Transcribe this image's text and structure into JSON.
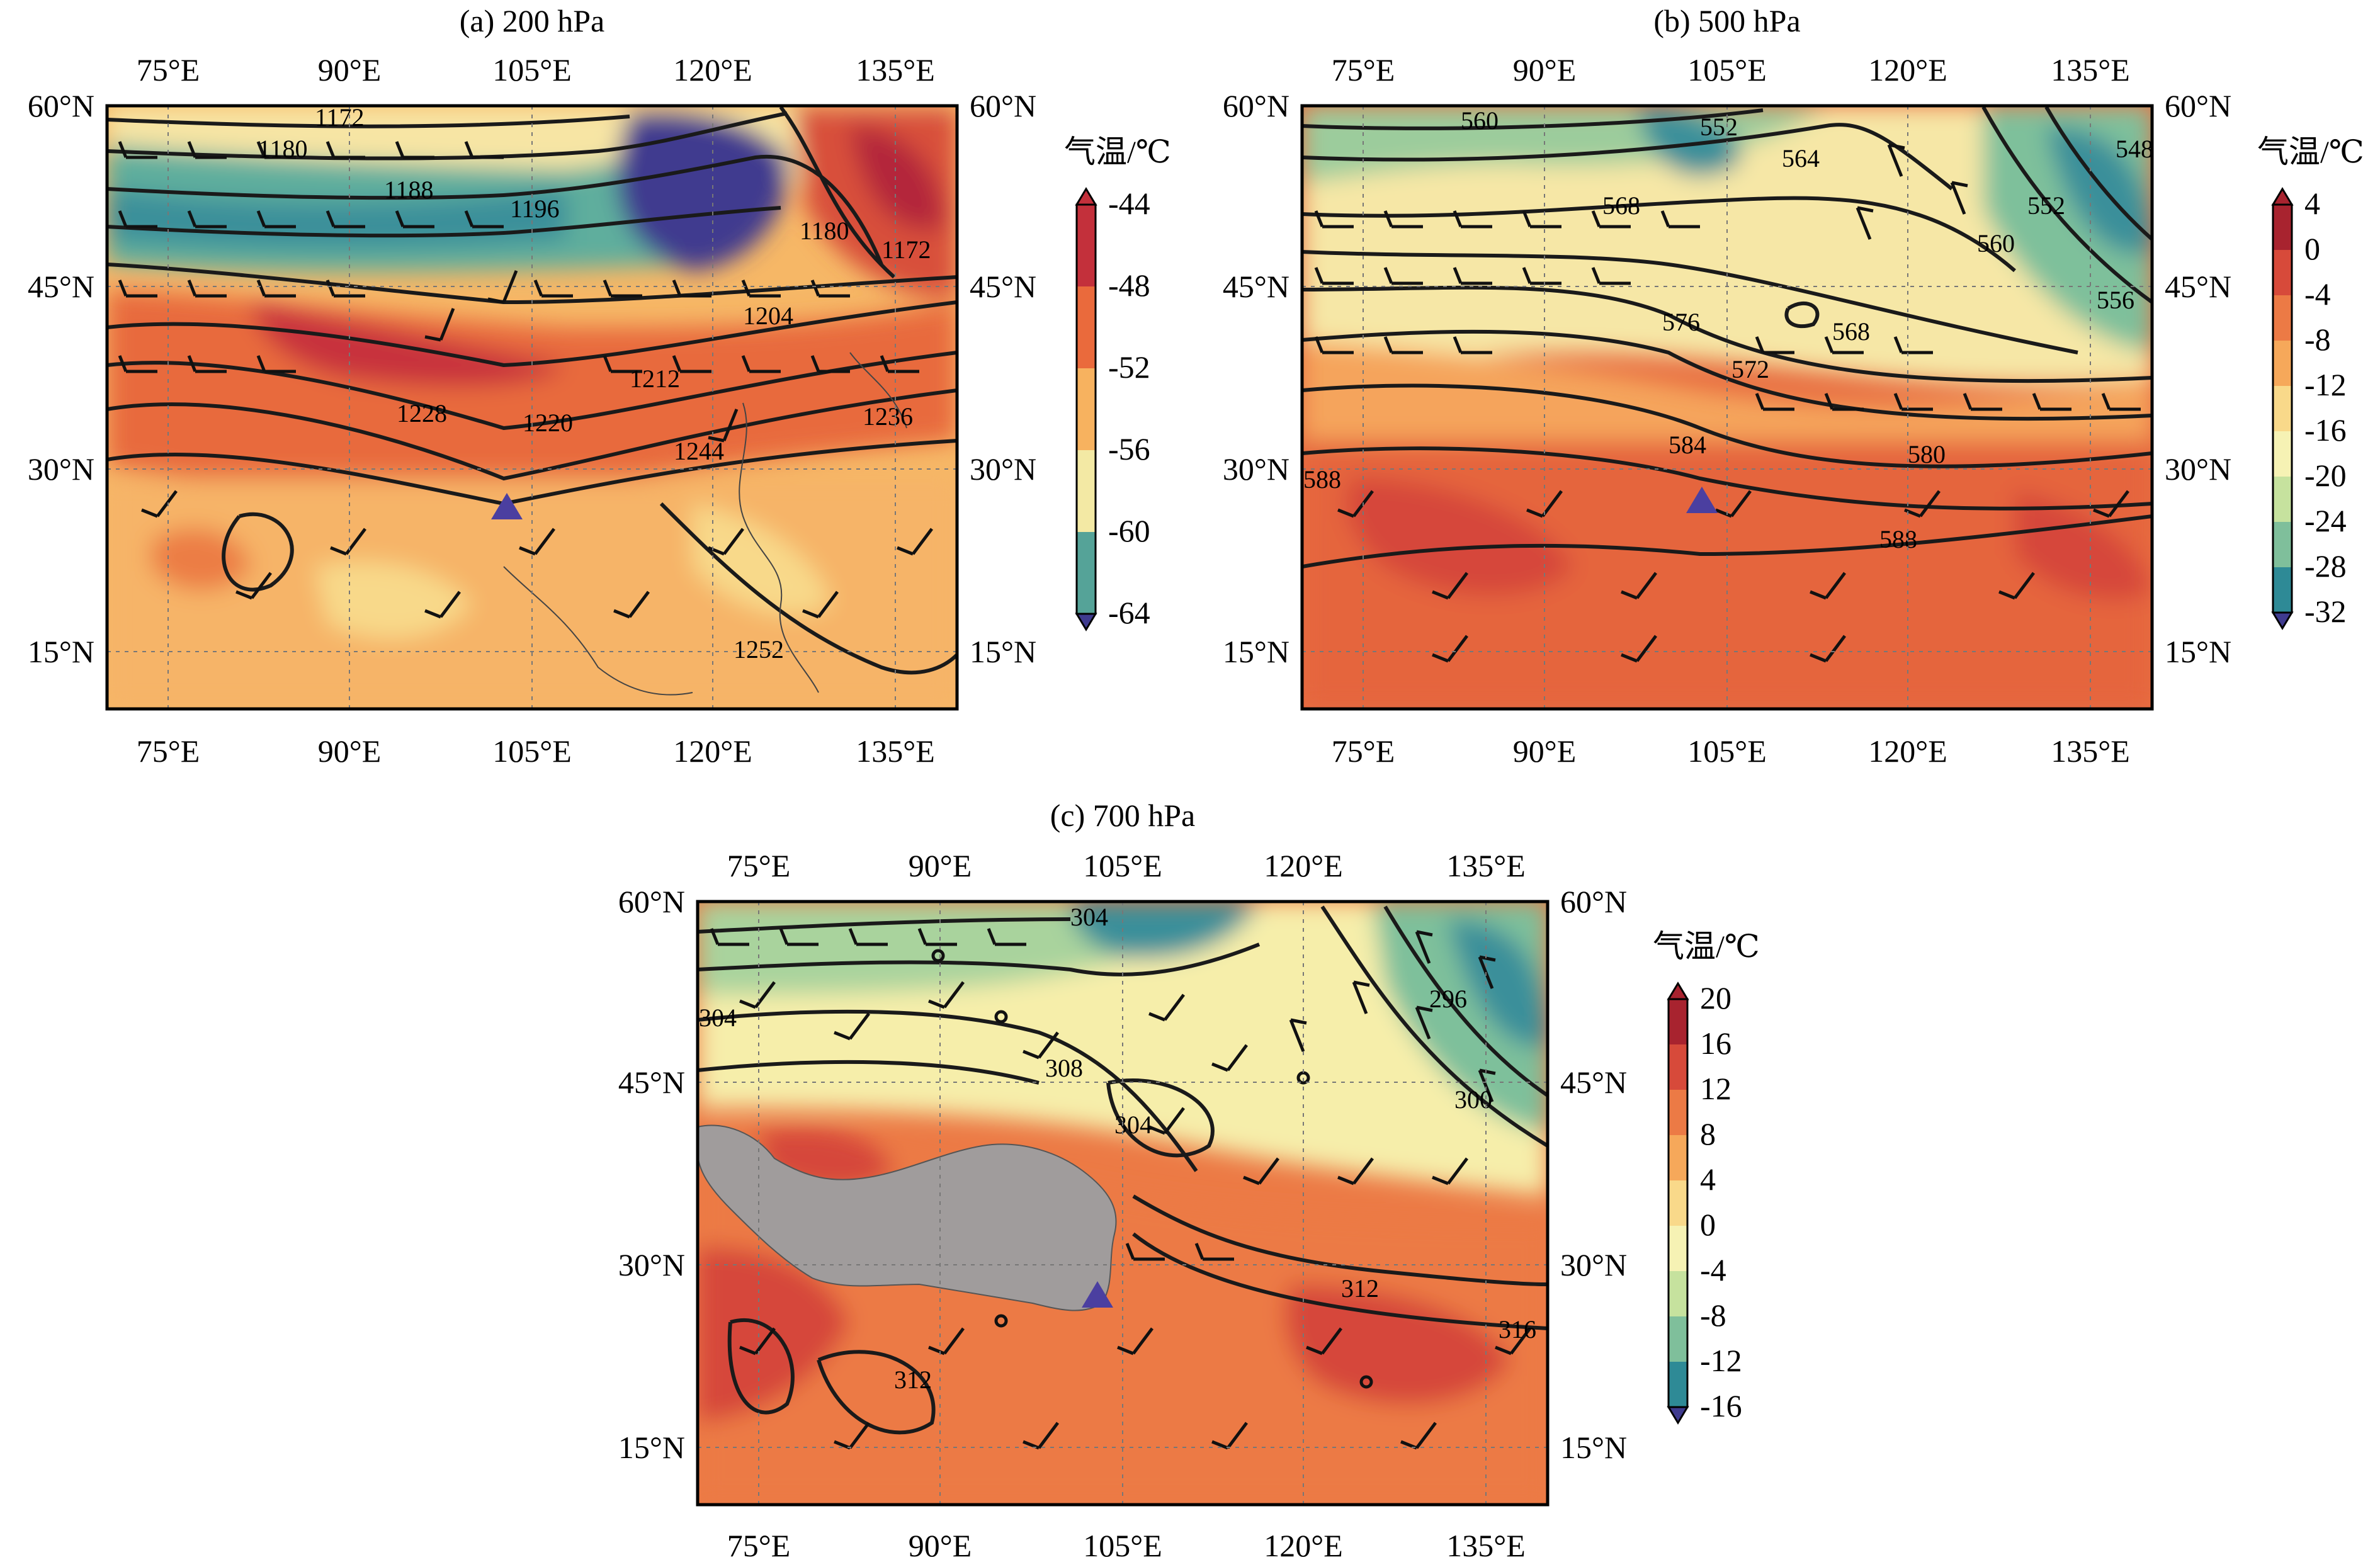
{
  "figure": {
    "panels": [
      {
        "id": "a",
        "title": "(a) 200 hPa",
        "lon_ticks": [
          "75°E",
          "90°E",
          "105°E",
          "120°E",
          "135°E"
        ],
        "lat_ticks": [
          "60°N",
          "45°N",
          "30°N",
          "15°N"
        ],
        "colorbar": {
          "title": "气温/℃",
          "labels": [
            "-44",
            "-48",
            "-52",
            "-56",
            "-60",
            "-64"
          ],
          "colors": [
            "#3f3b8f",
            "#2e8a96",
            "#8ec79c",
            "#f3e9a4",
            "#f7b25f",
            "#ea6a3c",
            "#c3303b"
          ]
        },
        "contour_labels": [
          "1172",
          "1180",
          "1188",
          "1196",
          "1180",
          "1172",
          "1204",
          "1212",
          "1220",
          "1228",
          "1244",
          "1236",
          "1252"
        ],
        "marker": "blue-triangle"
      },
      {
        "id": "b",
        "title": "(b) 500 hPa",
        "lon_ticks": [
          "75°E",
          "90°E",
          "105°E",
          "120°E",
          "135°E"
        ],
        "lat_ticks": [
          "60°N",
          "45°N",
          "30°N",
          "15°N"
        ],
        "colorbar": {
          "title": "气温/℃",
          "labels": [
            "4",
            "0",
            "-4",
            "-8",
            "-12",
            "-16",
            "-20",
            "-24",
            "-28",
            "-32"
          ],
          "colors": [
            "#3f3b8f",
            "#2e8a96",
            "#7fbf9b",
            "#c6e29e",
            "#f6f2b4",
            "#f9d98a",
            "#f6a85a",
            "#ec7a45",
            "#d74a3a",
            "#a8232f"
          ]
        },
        "contour_labels": [
          "560",
          "552",
          "564",
          "568",
          "552",
          "560",
          "556",
          "548",
          "576",
          "568",
          "572",
          "584",
          "580",
          "588",
          "588"
        ],
        "marker": "blue-triangle"
      },
      {
        "id": "c",
        "title": "(c) 700 hPa",
        "lon_ticks": [
          "75°E",
          "90°E",
          "105°E",
          "120°E",
          "135°E"
        ],
        "lat_ticks": [
          "60°N",
          "45°N",
          "30°N",
          "15°N"
        ],
        "colorbar": {
          "title": "气温/℃",
          "labels": [
            "20",
            "16",
            "12",
            "8",
            "4",
            "0",
            "-4",
            "-8",
            "-12",
            "-16"
          ],
          "colors": [
            "#3f3b8f",
            "#2e8a96",
            "#7fbf9b",
            "#c6e29e",
            "#f6f2b4",
            "#f9d98a",
            "#f6a85a",
            "#ec7a45",
            "#d74a3a",
            "#a8232f"
          ]
        },
        "contour_labels": [
          "304",
          "304",
          "308",
          "304",
          "296",
          "300",
          "312",
          "316",
          "312"
        ],
        "marker": "blue-triangle",
        "terrain_mask": "gray-plateau"
      }
    ]
  }
}
